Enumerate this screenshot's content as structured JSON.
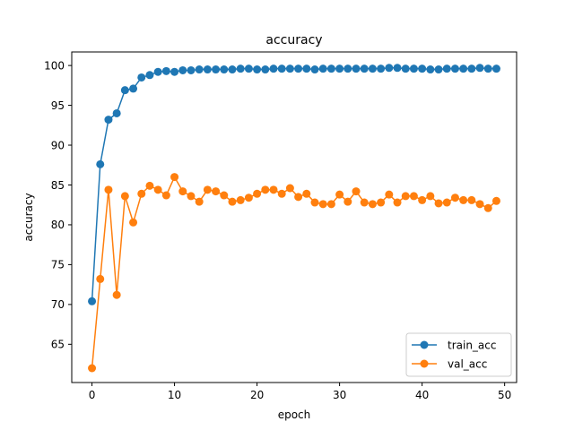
{
  "chart_data": {
    "type": "line",
    "title": "accuracy",
    "xlabel": "epoch",
    "ylabel": "accuracy",
    "xlim": [
      -2.45,
      51.45
    ],
    "ylim": [
      60.2,
      101.7
    ],
    "xticks": [
      0,
      10,
      20,
      30,
      40,
      50
    ],
    "yticks": [
      65,
      70,
      75,
      80,
      85,
      90,
      95,
      100
    ],
    "grid": false,
    "legend_position": "lower-right",
    "series": [
      {
        "name": "train_acc",
        "color": "#1f77b4",
        "marker": "circle",
        "x": [
          0,
          1,
          2,
          3,
          4,
          5,
          6,
          7,
          8,
          9,
          10,
          11,
          12,
          13,
          14,
          15,
          16,
          17,
          18,
          19,
          20,
          21,
          22,
          23,
          24,
          25,
          26,
          27,
          28,
          29,
          30,
          31,
          32,
          33,
          34,
          35,
          36,
          37,
          38,
          39,
          40,
          41,
          42,
          43,
          44,
          45,
          46,
          47,
          48,
          49
        ],
        "y": [
          70.4,
          87.6,
          93.2,
          94.0,
          96.9,
          97.1,
          98.5,
          98.8,
          99.2,
          99.3,
          99.2,
          99.4,
          99.4,
          99.5,
          99.5,
          99.5,
          99.5,
          99.5,
          99.6,
          99.6,
          99.5,
          99.5,
          99.6,
          99.6,
          99.6,
          99.6,
          99.6,
          99.5,
          99.6,
          99.6,
          99.6,
          99.6,
          99.6,
          99.6,
          99.6,
          99.6,
          99.7,
          99.7,
          99.6,
          99.6,
          99.6,
          99.5,
          99.5,
          99.6,
          99.6,
          99.6,
          99.6,
          99.7,
          99.6,
          99.6
        ]
      },
      {
        "name": "val_acc",
        "color": "#ff7f0e",
        "marker": "circle",
        "x": [
          0,
          1,
          2,
          3,
          4,
          5,
          6,
          7,
          8,
          9,
          10,
          11,
          12,
          13,
          14,
          15,
          16,
          17,
          18,
          19,
          20,
          21,
          22,
          23,
          24,
          25,
          26,
          27,
          28,
          29,
          30,
          31,
          32,
          33,
          34,
          35,
          36,
          37,
          38,
          39,
          40,
          41,
          42,
          43,
          44,
          45,
          46,
          47,
          48,
          49
        ],
        "y": [
          62.0,
          73.2,
          84.4,
          71.2,
          83.6,
          80.3,
          83.9,
          84.9,
          84.4,
          83.7,
          86.0,
          84.2,
          83.6,
          82.9,
          84.4,
          84.2,
          83.7,
          82.9,
          83.1,
          83.4,
          83.9,
          84.4,
          84.4,
          83.9,
          84.6,
          83.5,
          83.9,
          82.8,
          82.6,
          82.6,
          83.8,
          82.9,
          84.2,
          82.8,
          82.6,
          82.8,
          83.8,
          82.8,
          83.6,
          83.6,
          83.1,
          83.6,
          82.7,
          82.8,
          83.4,
          83.1,
          83.1,
          82.6,
          82.1,
          83.0
        ]
      }
    ]
  }
}
